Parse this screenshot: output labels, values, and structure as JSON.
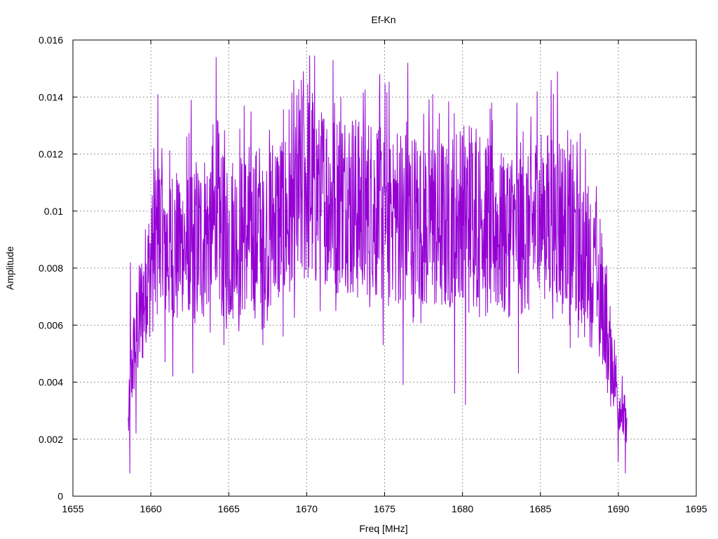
{
  "chart_data": {
    "type": "line",
    "title": "Ef-Kn",
    "xlabel": "Freq [MHz]",
    "ylabel": "Amplitude",
    "xlim": [
      1655,
      1695
    ],
    "ylim": [
      0,
      0.016
    ],
    "x_ticks": [
      1655,
      1660,
      1665,
      1670,
      1675,
      1680,
      1685,
      1690,
      1695
    ],
    "y_ticks": [
      "0",
      "0.002",
      "0.004",
      "0.006",
      "0.008",
      "0.01",
      "0.012",
      "0.014",
      "0.016"
    ],
    "grid": true,
    "legend": "none",
    "series_color": "#9400d3",
    "series": [
      {
        "x_start": 1658.55,
        "x_end": 1690.55,
        "envelope_x": [
          1658.55,
          1658.8,
          1659.0,
          1659.5,
          1660.0,
          1660.5,
          1661.0,
          1662.0,
          1663.0,
          1664.0,
          1665.0,
          1666.0,
          1667.0,
          1668.0,
          1669.0,
          1670.0,
          1671.0,
          1672.0,
          1673.0,
          1674.0,
          1675.0,
          1676.0,
          1677.0,
          1678.0,
          1679.0,
          1680.0,
          1681.0,
          1682.0,
          1683.0,
          1684.0,
          1685.0,
          1686.0,
          1687.0,
          1688.0,
          1688.7,
          1689.2,
          1689.6,
          1690.0,
          1690.3,
          1690.55
        ],
        "envelope_y": [
          0.0025,
          0.0045,
          0.0055,
          0.0068,
          0.008,
          0.0092,
          0.0088,
          0.0087,
          0.0088,
          0.0095,
          0.009,
          0.0092,
          0.0094,
          0.0096,
          0.0098,
          0.0112,
          0.0104,
          0.0103,
          0.0102,
          0.01,
          0.0101,
          0.0098,
          0.0097,
          0.0096,
          0.0095,
          0.01,
          0.0101,
          0.0094,
          0.0093,
          0.0092,
          0.0098,
          0.0099,
          0.0091,
          0.0086,
          0.0075,
          0.0062,
          0.0048,
          0.0035,
          0.0028,
          0.0022
        ],
        "peaks": [
          [
            1658.7,
            0.0082
          ],
          [
            1660.2,
            0.0122
          ],
          [
            1660.45,
            0.0141
          ],
          [
            1662.6,
            0.0139
          ],
          [
            1664.2,
            0.0154
          ],
          [
            1666.0,
            0.0137
          ],
          [
            1669.8,
            0.0149
          ],
          [
            1671.7,
            0.0153
          ],
          [
            1672.2,
            0.014
          ],
          [
            1674.7,
            0.0148
          ],
          [
            1676.5,
            0.0152
          ],
          [
            1678.1,
            0.0141
          ],
          [
            1683.5,
            0.0138
          ],
          [
            1684.8,
            0.0142
          ],
          [
            1685.7,
            0.0146
          ],
          [
            1686.1,
            0.0149
          ]
        ],
        "dips": [
          [
            1658.65,
            0.0008
          ],
          [
            1659.05,
            0.0022
          ],
          [
            1660.9,
            0.0047
          ],
          [
            1661.4,
            0.0042
          ],
          [
            1662.7,
            0.0043
          ],
          [
            1664.7,
            0.0053
          ],
          [
            1667.2,
            0.0053
          ],
          [
            1668.5,
            0.0056
          ],
          [
            1674.9,
            0.0053
          ],
          [
            1676.2,
            0.0039
          ],
          [
            1679.5,
            0.0036
          ],
          [
            1680.2,
            0.0032
          ],
          [
            1683.6,
            0.0043
          ],
          [
            1686.9,
            0.0052
          ],
          [
            1688.8,
            0.0049
          ],
          [
            1689.5,
            0.004
          ],
          [
            1690.0,
            0.0012
          ],
          [
            1690.45,
            0.0008
          ]
        ]
      }
    ]
  }
}
